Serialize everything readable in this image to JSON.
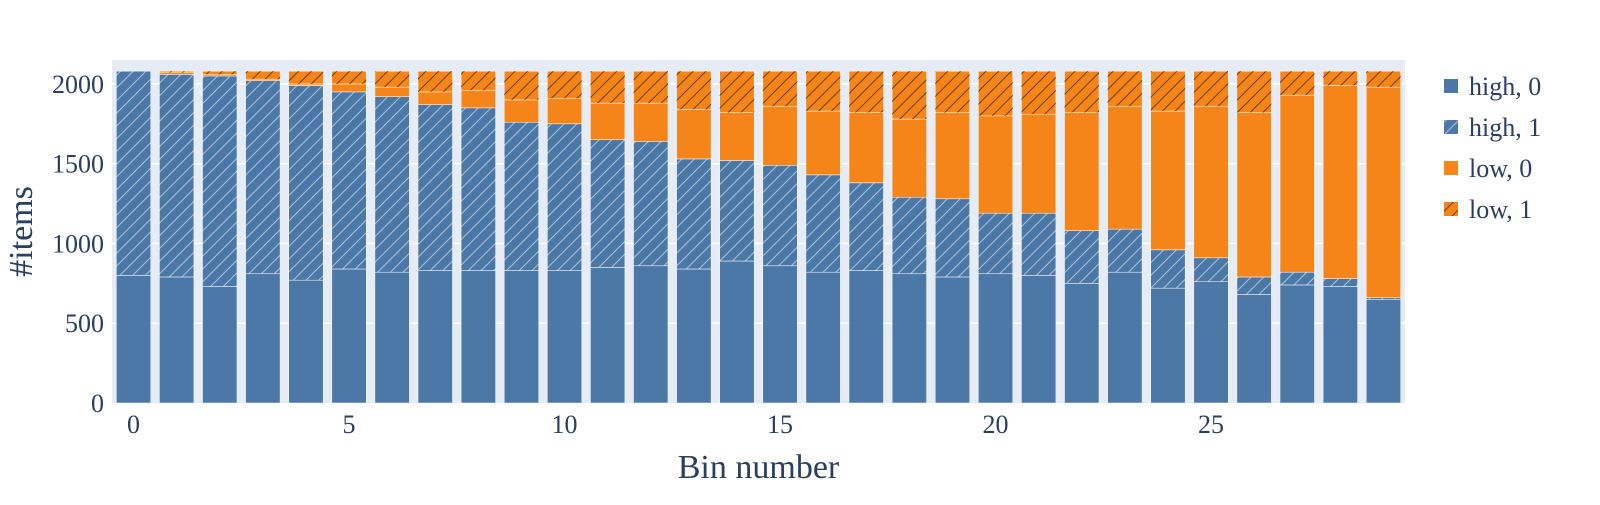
{
  "chart_data": {
    "type": "bar",
    "stacked": true,
    "xlabel": "Bin number",
    "ylabel": "#items",
    "ylim": [
      0,
      2150
    ],
    "xlim": [
      -0.5,
      29.5
    ],
    "x_ticks": [
      0,
      5,
      10,
      15,
      20,
      25
    ],
    "y_ticks": [
      0,
      500,
      1000,
      1500,
      2000
    ],
    "grid": true,
    "legend_position": "right",
    "plot_background": "#e5ecf6",
    "categories": [
      0,
      1,
      2,
      3,
      4,
      5,
      6,
      7,
      8,
      9,
      10,
      11,
      12,
      13,
      14,
      15,
      16,
      17,
      18,
      19,
      20,
      21,
      22,
      23,
      24,
      25,
      26,
      27,
      28,
      29
    ],
    "series": [
      {
        "name": "high, 0",
        "color": "#4c78a8",
        "pattern": "none",
        "values": [
          800,
          790,
          730,
          810,
          770,
          840,
          820,
          830,
          830,
          830,
          830,
          850,
          860,
          840,
          890,
          860,
          820,
          830,
          810,
          790,
          810,
          800,
          750,
          820,
          720,
          760,
          680,
          740,
          730,
          650
        ]
      },
      {
        "name": "high, 1",
        "color": "#4c78a8",
        "pattern": "hatch",
        "values": [
          1280,
          1270,
          1320,
          1210,
          1220,
          1110,
          1100,
          1040,
          1020,
          930,
          920,
          800,
          780,
          690,
          630,
          630,
          610,
          550,
          480,
          490,
          380,
          390,
          330,
          270,
          240,
          150,
          110,
          80,
          50,
          10
        ]
      },
      {
        "name": "low, 0",
        "color": "#f58518",
        "pattern": "none",
        "values": [
          0,
          10,
          10,
          10,
          10,
          50,
          60,
          80,
          110,
          140,
          160,
          230,
          240,
          310,
          300,
          370,
          400,
          440,
          490,
          540,
          610,
          620,
          740,
          770,
          870,
          950,
          1030,
          1110,
          1210,
          1320
        ]
      },
      {
        "name": "low, 1",
        "color": "#f58518",
        "pattern": "hatch",
        "values": [
          0,
          10,
          20,
          50,
          80,
          80,
          100,
          130,
          120,
          180,
          170,
          200,
          200,
          240,
          260,
          220,
          250,
          260,
          300,
          260,
          280,
          270,
          260,
          220,
          250,
          220,
          260,
          150,
          90,
          100
        ]
      }
    ]
  }
}
